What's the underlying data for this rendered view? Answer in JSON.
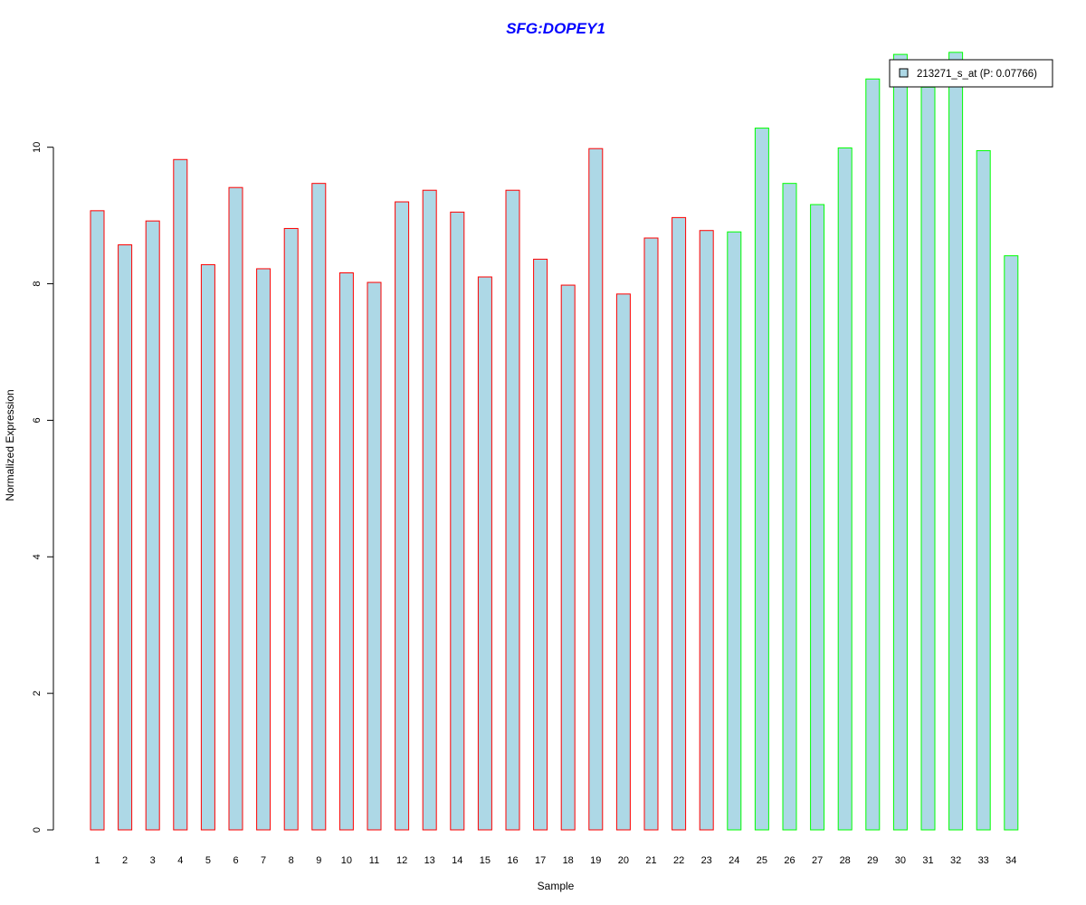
{
  "chart_data": {
    "type": "bar",
    "title": "SFG:DOPEY1",
    "xlabel": "Sample",
    "ylabel": "Normalized Expression",
    "ylim": [
      0,
      11.6
    ],
    "yticks": [
      0,
      2,
      4,
      6,
      8,
      10
    ],
    "categories": [
      "1",
      "2",
      "3",
      "4",
      "5",
      "6",
      "7",
      "8",
      "9",
      "10",
      "11",
      "12",
      "13",
      "14",
      "15",
      "16",
      "17",
      "18",
      "19",
      "20",
      "21",
      "22",
      "23",
      "24",
      "25",
      "26",
      "27",
      "28",
      "29",
      "30",
      "31",
      "32",
      "33",
      "34"
    ],
    "series": [
      {
        "name": "213271_s_at (P: 0.07766)",
        "values": [
          9.07,
          8.57,
          8.92,
          9.82,
          8.28,
          9.41,
          8.22,
          8.81,
          9.47,
          8.16,
          8.02,
          9.2,
          9.37,
          9.05,
          8.1,
          9.37,
          8.36,
          7.98,
          9.98,
          7.85,
          8.67,
          8.97,
          8.78,
          8.76,
          10.28,
          9.47,
          9.16,
          9.99,
          11.0,
          11.36,
          10.88,
          11.39,
          9.95,
          8.41
        ]
      }
    ],
    "bar_fill": "#add8e6",
    "group_border_colors": {
      "group1": "#ff0000",
      "group2": "#00ff00"
    },
    "group_assignment": [
      "group1",
      "group1",
      "group1",
      "group1",
      "group1",
      "group1",
      "group1",
      "group1",
      "group1",
      "group1",
      "group1",
      "group1",
      "group1",
      "group1",
      "group1",
      "group1",
      "group1",
      "group1",
      "group1",
      "group1",
      "group1",
      "group1",
      "group1",
      "group2",
      "group2",
      "group2",
      "group2",
      "group2",
      "group2",
      "group2",
      "group2",
      "group2",
      "group2",
      "group2"
    ],
    "grid": false,
    "legend": {
      "position": "top-right",
      "label": "213271_s_at (P: 0.07766)"
    }
  }
}
